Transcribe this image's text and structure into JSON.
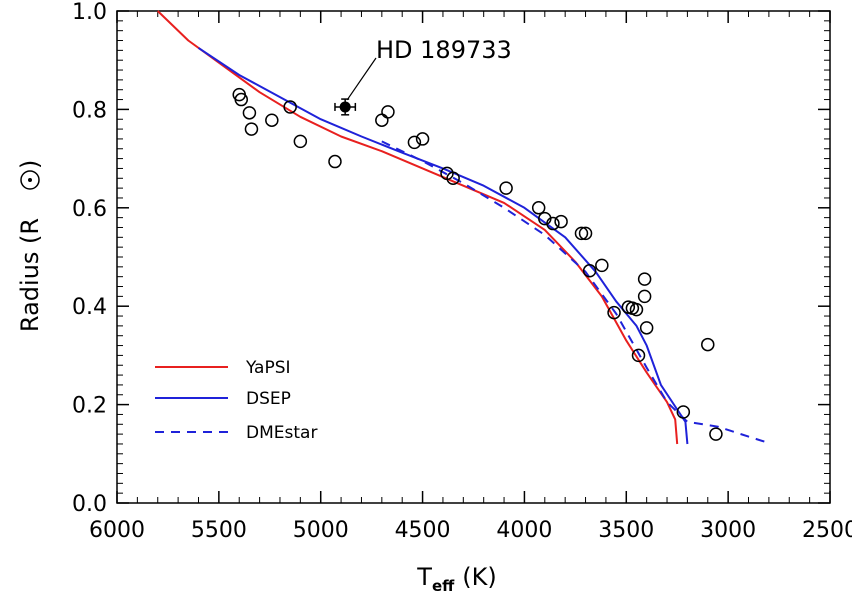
{
  "chart_data": {
    "type": "line",
    "xlabel_main": "T",
    "xlabel_sub": "eff",
    "xlabel_unit": "(K)",
    "ylabel_main": "Radius (R",
    "ylabel_close": ")",
    "xlim": [
      6000,
      2500
    ],
    "ylim": [
      0.0,
      1.0
    ],
    "x_ticks": [
      6000,
      5500,
      5000,
      4500,
      4000,
      3500,
      3000,
      2500
    ],
    "x_tick_labels": [
      "6000",
      "5500",
      "5000",
      "4500",
      "4000",
      "3500",
      "3000",
      "2500"
    ],
    "y_ticks": [
      0.0,
      0.2,
      0.4,
      0.6,
      0.8,
      1.0
    ],
    "y_tick_labels": [
      "0.0",
      "0.2",
      "0.4",
      "0.6",
      "0.8",
      "1.0"
    ],
    "grid": false,
    "legend_position": "bottom-left",
    "series": [
      {
        "name": "YaPSI",
        "color": "#e8201f",
        "style": "solid",
        "points": [
          [
            5800,
            1.0
          ],
          [
            5650,
            0.94
          ],
          [
            5500,
            0.895
          ],
          [
            5300,
            0.835
          ],
          [
            5100,
            0.785
          ],
          [
            4900,
            0.745
          ],
          [
            4700,
            0.715
          ],
          [
            4500,
            0.68
          ],
          [
            4300,
            0.645
          ],
          [
            4100,
            0.61
          ],
          [
            3900,
            0.555
          ],
          [
            3750,
            0.49
          ],
          [
            3620,
            0.42
          ],
          [
            3500,
            0.33
          ],
          [
            3400,
            0.265
          ],
          [
            3300,
            0.205
          ],
          [
            3260,
            0.17
          ],
          [
            3250,
            0.12
          ]
        ]
      },
      {
        "name": "DSEP",
        "color": "#1f22d9",
        "style": "solid",
        "points": [
          [
            5600,
            0.925
          ],
          [
            5400,
            0.87
          ],
          [
            5200,
            0.825
          ],
          [
            5000,
            0.78
          ],
          [
            4800,
            0.745
          ],
          [
            4600,
            0.712
          ],
          [
            4400,
            0.68
          ],
          [
            4200,
            0.645
          ],
          [
            4000,
            0.6
          ],
          [
            3800,
            0.54
          ],
          [
            3650,
            0.47
          ],
          [
            3550,
            0.41
          ],
          [
            3450,
            0.36
          ],
          [
            3400,
            0.32
          ],
          [
            3330,
            0.24
          ],
          [
            3250,
            0.19
          ],
          [
            3210,
            0.165
          ],
          [
            3200,
            0.12
          ]
        ]
      },
      {
        "name": "DMEstar",
        "color": "#1f22d9",
        "style": "dashed",
        "points": [
          [
            4700,
            0.735
          ],
          [
            4500,
            0.695
          ],
          [
            4300,
            0.65
          ],
          [
            4100,
            0.6
          ],
          [
            3900,
            0.545
          ],
          [
            3700,
            0.47
          ],
          [
            3550,
            0.385
          ],
          [
            3400,
            0.275
          ],
          [
            3300,
            0.205
          ],
          [
            3200,
            0.165
          ],
          [
            3050,
            0.155
          ],
          [
            2900,
            0.135
          ],
          [
            2800,
            0.122
          ]
        ]
      }
    ],
    "observed_stars": [
      [
        5400,
        0.83
      ],
      [
        5390,
        0.82
      ],
      [
        5350,
        0.793
      ],
      [
        5340,
        0.76
      ],
      [
        5240,
        0.778
      ],
      [
        5150,
        0.805
      ],
      [
        5100,
        0.735
      ],
      [
        4930,
        0.694
      ],
      [
        4700,
        0.778
      ],
      [
        4670,
        0.795
      ],
      [
        4540,
        0.733
      ],
      [
        4500,
        0.74
      ],
      [
        4380,
        0.67
      ],
      [
        4350,
        0.66
      ],
      [
        4090,
        0.64
      ],
      [
        3930,
        0.6
      ],
      [
        3900,
        0.578
      ],
      [
        3860,
        0.568
      ],
      [
        3820,
        0.572
      ],
      [
        3720,
        0.548
      ],
      [
        3700,
        0.548
      ],
      [
        3680,
        0.472
      ],
      [
        3620,
        0.483
      ],
      [
        3560,
        0.387
      ],
      [
        3490,
        0.398
      ],
      [
        3470,
        0.396
      ],
      [
        3450,
        0.393
      ],
      [
        3440,
        0.3
      ],
      [
        3410,
        0.455
      ],
      [
        3410,
        0.42
      ],
      [
        3400,
        0.356
      ],
      [
        3220,
        0.185
      ],
      [
        3100,
        0.322
      ],
      [
        3060,
        0.14
      ]
    ],
    "highlight_star": {
      "label": "HD 189733",
      "teff": 4880,
      "teff_err": 50,
      "radius": 0.805,
      "radius_err": 0.016
    }
  }
}
